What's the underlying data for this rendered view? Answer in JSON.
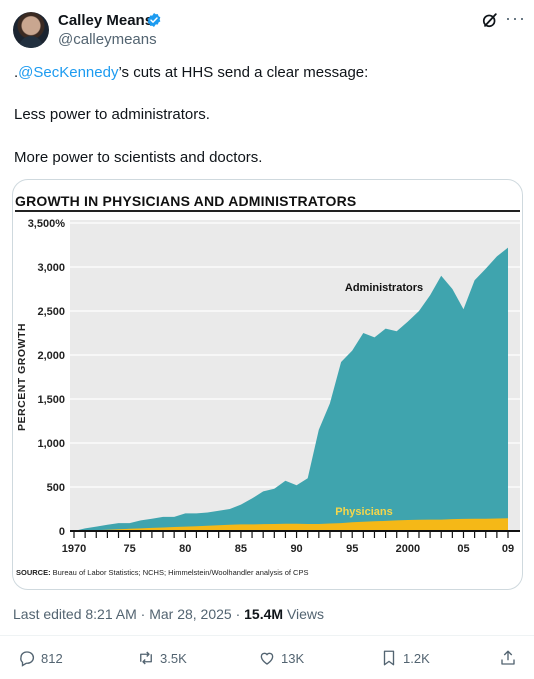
{
  "author": {
    "name": "Calley Means",
    "handle": "@calleymeans"
  },
  "tweet": {
    "line1_prefix": ".",
    "line1_mention": "@SecKennedy",
    "line1_suffix": "’s cuts at HHS send a clear message:",
    "line2": "Less power to administrators.",
    "line3": "More power to scientists and doctors."
  },
  "meta": {
    "edited": "Last edited 8:21 AM · Mar 28, 2025 · ",
    "views_count": "15.4M",
    "views_label": " Views"
  },
  "actions": {
    "replies": "812",
    "reposts": "3.5K",
    "likes": "13K",
    "bookmarks": "1.2K"
  },
  "icons": [
    "verified-badge-icon",
    "grok-icon",
    "more-icon",
    "reply-icon",
    "repost-icon",
    "like-icon",
    "bookmark-icon",
    "share-icon"
  ],
  "colors": {
    "accent": "#1d9bf0",
    "administrators": "#3fa4ae",
    "physicians": "#f5b817"
  },
  "chart_data": {
    "type": "area",
    "title": "GROWTH IN PHYSICIANS AND ADMINISTRATORS",
    "ylabel": "PERCENT GROWTH",
    "ylim": [
      0,
      3500
    ],
    "yticks": [
      0,
      500,
      1000,
      1500,
      2000,
      2500,
      3000,
      3500
    ],
    "ytick_labels": [
      "0",
      "500",
      "1,000",
      "1,500",
      "2,000",
      "2,500",
      "3,000",
      "3,500%"
    ],
    "xlim": [
      1970,
      2009
    ],
    "xtick_values": [
      1970,
      1975,
      1980,
      1985,
      1990,
      1995,
      2000,
      2005,
      2009
    ],
    "xtick_labels": [
      "1970",
      "75",
      "80",
      "85",
      "90",
      "95",
      "2000",
      "05",
      "09"
    ],
    "grid": true,
    "series": [
      {
        "name": "Administrators",
        "x": [
          1970,
          1971,
          1972,
          1973,
          1974,
          1975,
          1976,
          1977,
          1978,
          1979,
          1980,
          1981,
          1982,
          1983,
          1984,
          1985,
          1986,
          1987,
          1988,
          1989,
          1990,
          1991,
          1992,
          1993,
          1994,
          1995,
          1996,
          1997,
          1998,
          1999,
          2000,
          2001,
          2002,
          2003,
          2004,
          2005,
          2006,
          2007,
          2008,
          2009
        ],
        "values": [
          0,
          30,
          50,
          70,
          90,
          90,
          120,
          140,
          160,
          160,
          200,
          200,
          210,
          230,
          250,
          300,
          370,
          450,
          480,
          570,
          520,
          600,
          1150,
          1450,
          1920,
          2050,
          2250,
          2200,
          2300,
          2270,
          2380,
          2500,
          2680,
          2900,
          2750,
          2520,
          2850,
          2980,
          3120,
          3220
        ]
      },
      {
        "name": "Physicians",
        "x": [
          1970,
          1971,
          1972,
          1973,
          1974,
          1975,
          1976,
          1977,
          1978,
          1979,
          1980,
          1981,
          1982,
          1983,
          1984,
          1985,
          1986,
          1987,
          1988,
          1989,
          1990,
          1991,
          1992,
          1993,
          1994,
          1995,
          1996,
          1997,
          1998,
          1999,
          2000,
          2001,
          2002,
          2003,
          2004,
          2005,
          2006,
          2007,
          2008,
          2009
        ],
        "values": [
          0,
          5,
          10,
          15,
          20,
          25,
          30,
          35,
          40,
          45,
          50,
          55,
          60,
          65,
          70,
          75,
          75,
          78,
          80,
          82,
          82,
          80,
          80,
          85,
          90,
          100,
          105,
          110,
          115,
          120,
          125,
          128,
          130,
          130,
          135,
          138,
          140,
          140,
          142,
          145
        ]
      }
    ],
    "annotations": [
      {
        "text": "Administrators",
        "series": "Administrators"
      },
      {
        "text": "Physicians",
        "series": "Physicians"
      }
    ],
    "source_label": "SOURCE:",
    "source": "Bureau of Labor Statistics; NCHS; Himmelstein/Woolhandler analysis of CPS"
  }
}
